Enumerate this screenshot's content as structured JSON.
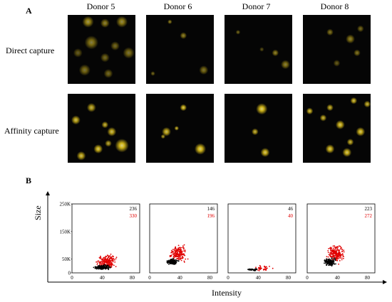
{
  "panel_a": {
    "letter": "A",
    "donors": [
      "Donor 5",
      "Donor 6",
      "Donor 7",
      "Donor 8"
    ],
    "rows": [
      "Direct capture",
      "Affinity capture"
    ],
    "spot_color": "#f2d21b"
  },
  "panel_b": {
    "letter": "B",
    "colors": {
      "black_series": "#000000",
      "red_series": "#e00000"
    },
    "chart_data": {
      "type": "scatter",
      "xlabel": "Intensity",
      "ylabel": "Size",
      "xticks": [
        "0",
        "40",
        "80"
      ],
      "yticks": [
        "250K",
        "150K",
        "50K",
        "0"
      ],
      "xlim": [
        0,
        90
      ],
      "ylim": [
        0,
        250000
      ],
      "panels": [
        {
          "donor": "Donor 5",
          "count_black": "236",
          "count_red": "330"
        },
        {
          "donor": "Donor 6",
          "count_black": "146",
          "count_red": "196"
        },
        {
          "donor": "Donor 7",
          "count_black": "46",
          "count_red": "40"
        },
        {
          "donor": "Donor 8",
          "count_black": "223",
          "count_red": "272"
        }
      ]
    }
  }
}
